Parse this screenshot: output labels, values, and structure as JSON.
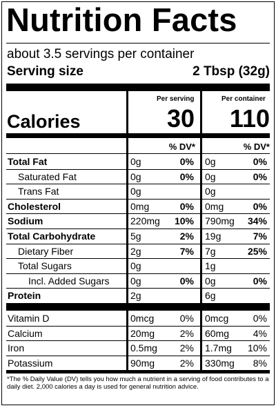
{
  "title": "Nutrition Facts",
  "servings": "about 3.5 servings per container",
  "serving_size_label": "Serving size",
  "serving_size_value": "2 Tbsp (32g)",
  "col_per_serving": "Per serving",
  "col_per_container": "Per container",
  "calories_label": "Calories",
  "calories_serving": "30",
  "calories_container": "110",
  "dv_label": "% DV*",
  "rows": [
    {
      "name": "Total Fat",
      "bold": true,
      "indent": 0,
      "s_amt": "0g",
      "s_dv": "0%",
      "c_amt": "0g",
      "c_dv": "0%"
    },
    {
      "name": "Saturated Fat",
      "bold": false,
      "indent": 1,
      "s_amt": "0g",
      "s_dv": "0%",
      "c_amt": "0g",
      "c_dv": "0%"
    },
    {
      "name": "Trans Fat",
      "bold": false,
      "indent": 1,
      "s_amt": "0g",
      "s_dv": "",
      "c_amt": "0g",
      "c_dv": ""
    },
    {
      "name": "Cholesterol",
      "bold": true,
      "indent": 0,
      "s_amt": "0mg",
      "s_dv": "0%",
      "c_amt": "0mg",
      "c_dv": "0%"
    },
    {
      "name": "Sodium",
      "bold": true,
      "indent": 0,
      "s_amt": "220mg",
      "s_dv": "10%",
      "c_amt": "790mg",
      "c_dv": "34%"
    },
    {
      "name": "Total Carbohydrate",
      "bold": true,
      "indent": 0,
      "s_amt": "5g",
      "s_dv": "2%",
      "c_amt": "19g",
      "c_dv": "7%"
    },
    {
      "name": "Dietary Fiber",
      "bold": false,
      "indent": 1,
      "s_amt": "2g",
      "s_dv": "7%",
      "c_amt": "7g",
      "c_dv": "25%"
    },
    {
      "name": "Total Sugars",
      "bold": false,
      "indent": 1,
      "s_amt": "0g",
      "s_dv": "",
      "c_amt": "1g",
      "c_dv": ""
    },
    {
      "name": "Incl. Added Sugars",
      "bold": false,
      "indent": 2,
      "s_amt": "0g",
      "s_dv": "0%",
      "c_amt": "0g",
      "c_dv": "0%"
    },
    {
      "name": "Protein",
      "bold": true,
      "indent": 0,
      "s_amt": "2g",
      "s_dv": "",
      "c_amt": "6g",
      "c_dv": ""
    }
  ],
  "micros": [
    {
      "name": "Vitamin D",
      "s_amt": "0mcg",
      "s_dv": "0%",
      "c_amt": "0mcg",
      "c_dv": "0%"
    },
    {
      "name": "Calcium",
      "s_amt": "20mg",
      "s_dv": "2%",
      "c_amt": "60mg",
      "c_dv": "4%"
    },
    {
      "name": "Iron",
      "s_amt": "0.5mg",
      "s_dv": "2%",
      "c_amt": "1.7mg",
      "c_dv": "10%"
    },
    {
      "name": "Potassium",
      "s_amt": "90mg",
      "s_dv": "2%",
      "c_amt": "330mg",
      "c_dv": "8%"
    }
  ],
  "footnote": "*The % Daily Value (DV) tells you how much a nutrient in a serving of food contributes to a daily diet. 2,000 calories a day is used for general nutrition advice."
}
